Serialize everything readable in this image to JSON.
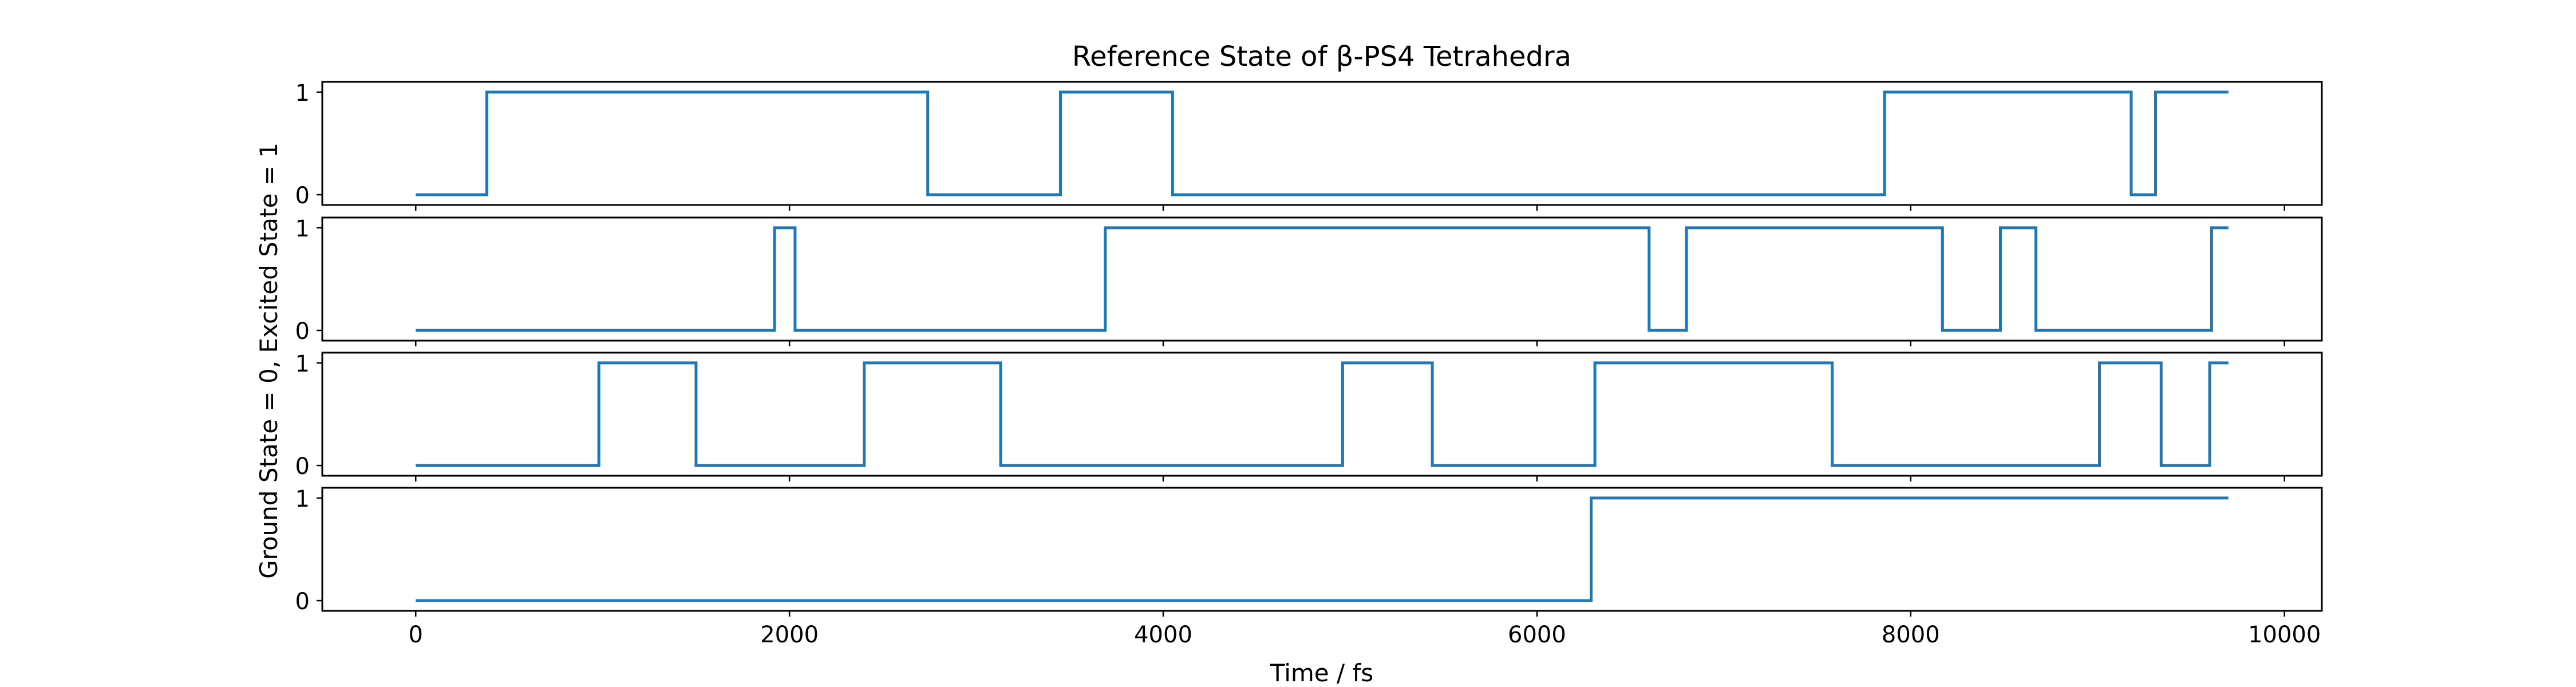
{
  "chart_data": {
    "type": "line",
    "title": "Reference State of β-PS4 Tetrahedra",
    "xlabel": "Time / fs",
    "ylabel": "Ground State = 0, Excited State = 1",
    "xlim": [
      -500,
      10200
    ],
    "ylim": [
      -0.1,
      1.1
    ],
    "xticks": [
      0,
      2000,
      4000,
      6000,
      8000,
      10000
    ],
    "yticks": [
      0,
      1
    ],
    "grid": false,
    "line_color": "#1f77b4",
    "series": [
      {
        "x": [
          0,
          380,
          380,
          2740,
          2740,
          3450,
          3450,
          4050,
          4050,
          7860,
          7860,
          9180,
          9180,
          9310,
          9310,
          9700
        ],
        "y": [
          0,
          0,
          1,
          1,
          0,
          0,
          1,
          1,
          0,
          0,
          1,
          1,
          0,
          0,
          1,
          1
        ]
      },
      {
        "x": [
          0,
          1920,
          1920,
          2030,
          2030,
          3690,
          3690,
          6600,
          6600,
          6800,
          6800,
          8170,
          8170,
          8480,
          8480,
          8670,
          8670,
          9610,
          9610,
          9700
        ],
        "y": [
          0,
          0,
          1,
          1,
          0,
          0,
          1,
          1,
          0,
          0,
          1,
          1,
          0,
          0,
          1,
          1,
          0,
          0,
          1,
          1
        ]
      },
      {
        "x": [
          0,
          980,
          980,
          1500,
          1500,
          2400,
          2400,
          3130,
          3130,
          4960,
          4960,
          5440,
          5440,
          6310,
          6310,
          7580,
          7580,
          9010,
          9010,
          9340,
          9340,
          9600,
          9600,
          9700
        ],
        "y": [
          0,
          0,
          1,
          1,
          0,
          0,
          1,
          1,
          0,
          0,
          1,
          1,
          0,
          0,
          1,
          1,
          0,
          0,
          1,
          1,
          0,
          0,
          1,
          1
        ]
      },
      {
        "x": [
          0,
          6290,
          6290,
          9700
        ],
        "y": [
          0,
          0,
          1,
          1
        ]
      }
    ]
  }
}
